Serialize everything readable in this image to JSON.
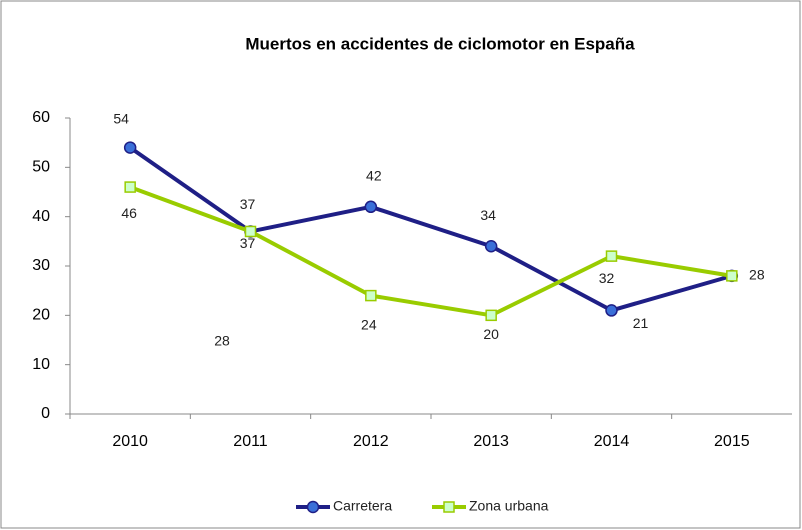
{
  "chart_data": {
    "type": "line",
    "title": "Muertos en accidentes de ciclomotor en España",
    "categories": [
      "2010",
      "2011",
      "2012",
      "2013",
      "2014",
      "2015"
    ],
    "series": [
      {
        "name": "Carretera",
        "color": "#1f1f86",
        "marker": "circle",
        "values": [
          54,
          37,
          42,
          34,
          21,
          28
        ]
      },
      {
        "name": "Zona urbana",
        "color": "#99cc00",
        "marker": "square",
        "values": [
          46,
          37,
          24,
          20,
          32,
          28
        ]
      }
    ],
    "ylim": [
      0,
      60
    ],
    "yticks": [
      0,
      10,
      20,
      30,
      40,
      50,
      60
    ],
    "grid": false,
    "legend": "bottom"
  }
}
